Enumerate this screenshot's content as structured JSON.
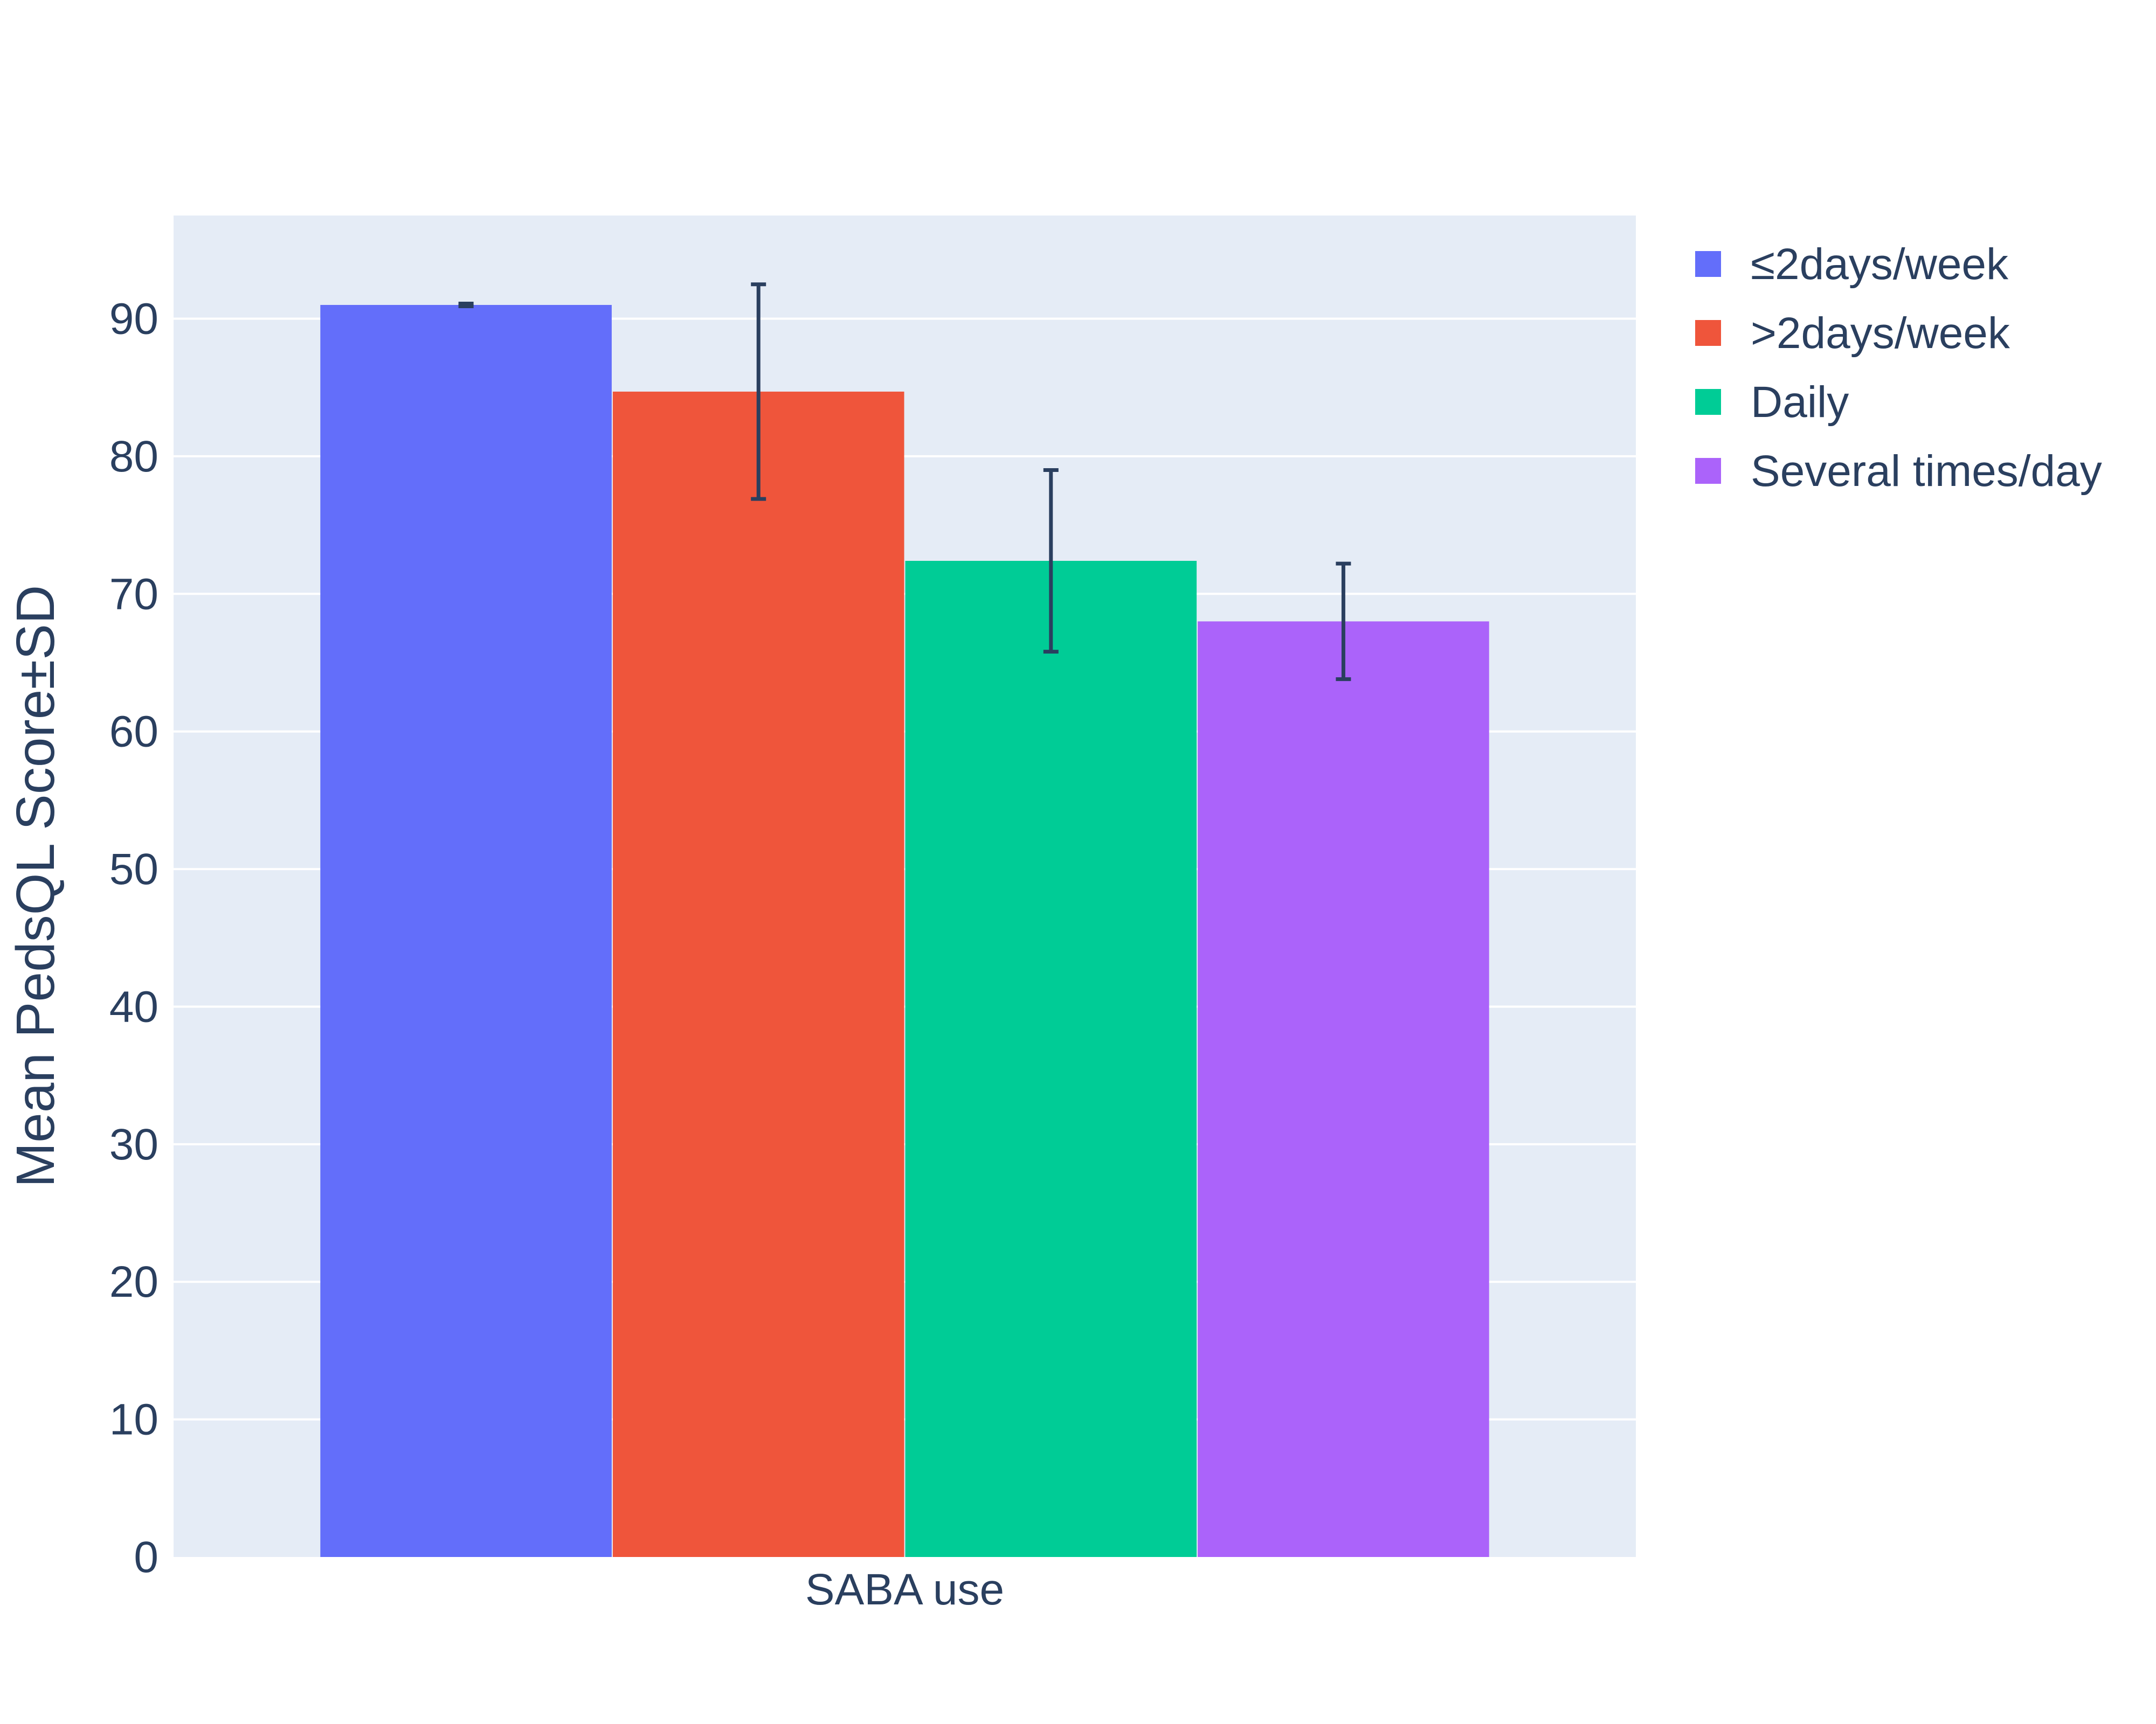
{
  "chart_data": {
    "type": "bar",
    "categories": [
      "SABA use"
    ],
    "series": [
      {
        "name": "≤2days/week",
        "values": [
          91.0
        ],
        "error": [
          0.1
        ],
        "color": "#636efa"
      },
      {
        "name": ">2days/week",
        "values": [
          84.7
        ],
        "error": [
          7.8
        ],
        "color": "#ef553b"
      },
      {
        "name": "Daily",
        "values": [
          72.4
        ],
        "error": [
          6.6
        ],
        "color": "#00cc96"
      },
      {
        "name": "Several times/day",
        "values": [
          68.0
        ],
        "error": [
          4.2
        ],
        "color": "#ab63fa"
      }
    ],
    "xlabel": "SABA use",
    "ylabel": "Mean PedsQL Score±SD",
    "ylim": [
      0,
      97.5
    ],
    "yticks": [
      0,
      10,
      20,
      30,
      40,
      50,
      60,
      70,
      80,
      90
    ],
    "grid": true,
    "legend_position": "top-right",
    "plot_background": "#e5ecf6",
    "text_color": "#2a3f5f",
    "error_bar_color": "#2a3f5f"
  }
}
